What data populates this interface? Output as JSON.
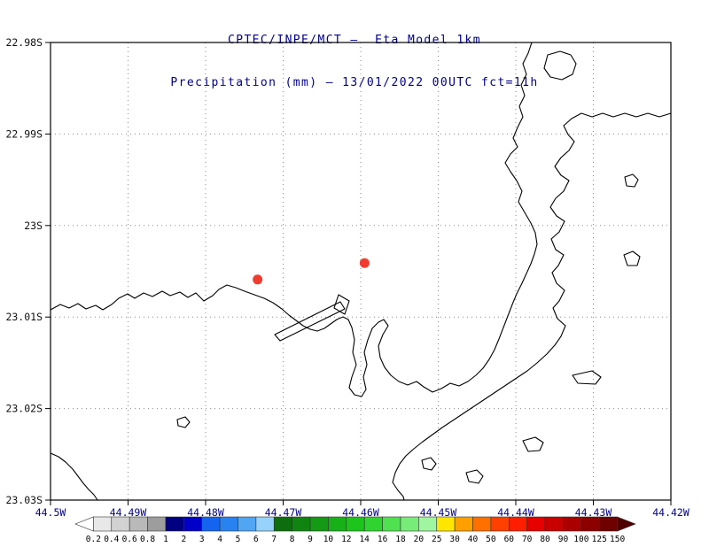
{
  "title": {
    "line1": "CPTEC/INPE/MCT –  Eta Model 1km",
    "line2": "Precipitation (mm) – 13/01/2022 00UTC fct=11h"
  },
  "map": {
    "y_tick_labels": [
      "22.98S",
      "22.99S",
      "23S",
      "23.01S",
      "23.02S",
      "23.03S"
    ],
    "x_tick_labels": [
      "44.5W",
      "44.49W",
      "44.48W",
      "44.47W",
      "44.46W",
      "44.45W",
      "44.44W",
      "44.43W",
      "44.42W"
    ],
    "lat_start": 22.98,
    "lat_end": 23.03,
    "lon_start": 44.5,
    "lon_end": 44.42,
    "grid_color": "#8a8a8a",
    "coast_color": "#000000",
    "markers": [
      {
        "name": "station-1",
        "lon_w": 44.4733,
        "lat_s": 23.0059
      },
      {
        "name": "station-2",
        "lon_w": 44.4595,
        "lat_s": 23.0041
      }
    ],
    "marker_color": "#f23b30",
    "coastline_paths": [
      "M57,350 L68,344 L78,348 L88,343 L97,349 L108,345 L116,350 L126,344 L134,337 L144,332 L152,337 L162,331 L172,335 L183,329 L192,334 L203,330 L212,336 L221,331 L230,340 L240,334 L247,327 L256,322 L266,325 L276,329 L287,333 L298,337 L308,342 L318,349 L326,356 L334,362 L342,368 L350,372 L358,374 L366,371 L373,366 L380,361 L387,358 L393,361 L397,370 L400,384 L398,398 L402,412 L397,426 L394,438 L400,446 L408,448 L413,440 L410,426 L414,412 L411,398 L415,384 L420,371 L427,364 L433,361 L438,368 L432,378 L427,391 L429,404 L434,415 L441,424 L450,431 L460,435 L470,431 L478,437 L488,443 L498,439 L508,433 L518,436 L528,431 L537,424 L545,416 L552,406 L558,395 L563,383 L568,370 L573,357 L578,344 L583,332 L589,320 L594,309 L599,298 L603,287 L606,276 L604,263 L599,252 L592,240 L585,228 L589,216 L583,204 L576,194 L570,184 L576,174 L584,166 L579,156 L584,144 L590,132 L586,120 L592,108 L588,96 L594,84 L590,72 L596,60 L600,48",
      "M310,378 L384,341 L389,349 L316,385 Z",
      "M382,333 L394,340 L389,355 L377,348 Z",
      "M618,62 L632,58 L644,62 L650,72 L646,84 L634,90 L621,87 L614,77 Z",
      "M757,128 L744,132 L731,128 L718,132 L705,128 L692,132 L680,128 L668,132 L656,128 L645,134 L636,142 L641,152 L648,160 L642,170 L633,178 L626,188 L633,198 L642,204 L636,216 L627,224 L621,234 L628,244 L637,250 L631,262 L622,270 L627,282 L636,288 L630,300 L623,308 L628,320 L637,328 L631,340 L624,348 L629,360 L638,368 L633,380 L626,390 L617,400 L606,410 L595,419 L583,427 L571,435 L559,443 L547,451 L535,459 L523,467 L511,475 L499,483 L488,491 L477,499 L467,507 L458,515 L451,524 L446,534 L443,545 L449,554 L455,561 L456,565",
      "M57,512 L66,516 L74,522 L82,530 L88,538 L94,546 L100,553 L106,559 L110,565",
      "M705,200 L714,197 L720,203 L716,211 L707,210 Z",
      "M704,288 L714,284 L722,290 L719,300 L708,300 Z",
      "M476,520 L486,517 L492,524 L487,531 L478,529 Z",
      "M526,534 L538,531 L545,538 L540,546 L529,544 Z",
      "M590,498 L604,494 L613,500 L609,509 L596,510 Z",
      "M646,424 L668,419 L678,426 L672,434 L652,433 Z",
      "M200,474 L209,471 L214,477 L209,483 L201,481 Z"
    ]
  },
  "colorbar": {
    "unit_labels": [
      "0.2",
      "0.4",
      "0.6",
      "0.8",
      "1",
      "2",
      "3",
      "4",
      "5",
      "6",
      "7",
      "8",
      "9",
      "10",
      "12",
      "14",
      "16",
      "18",
      "20",
      "25",
      "30",
      "40",
      "50",
      "60",
      "70",
      "80",
      "90",
      "100",
      "125",
      "150"
    ],
    "colors": [
      "#ffffff",
      "#e8e8e8",
      "#d2d2d2",
      "#b9b9b9",
      "#9d9d9d",
      "#000080",
      "#0000c8",
      "#1464f0",
      "#2882f0",
      "#50a5f5",
      "#96d2fa",
      "#0c6e0c",
      "#108410",
      "#149a14",
      "#18b018",
      "#1cc41c",
      "#30d430",
      "#50e150",
      "#78ec78",
      "#a0f5a0",
      "#ffe600",
      "#ffa000",
      "#ff7000",
      "#ff4000",
      "#ff1e00",
      "#e60000",
      "#c80000",
      "#aa0000",
      "#8c0000",
      "#6e0000",
      "#500000"
    ]
  }
}
